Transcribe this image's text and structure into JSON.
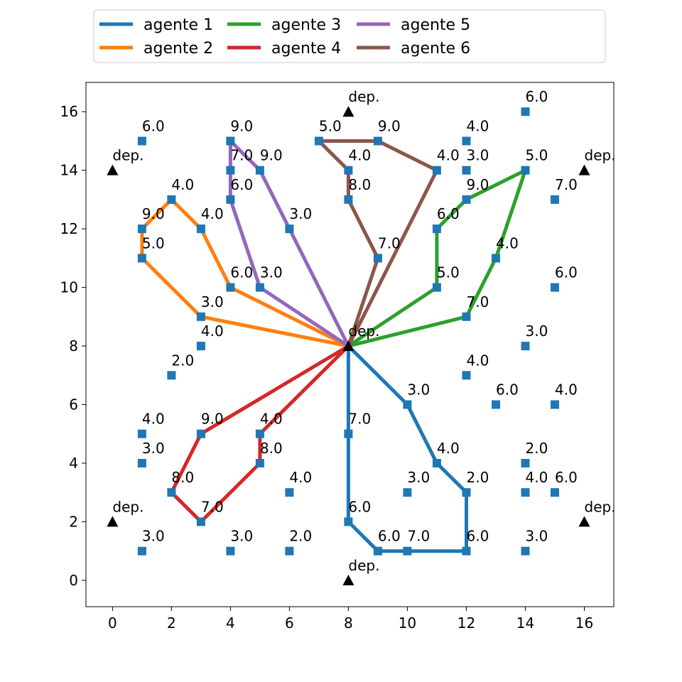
{
  "chart_data": {
    "type": "scatter",
    "xlim": [
      -0.9,
      17.0
    ],
    "ylim": [
      -0.9,
      17.0
    ],
    "xticks": [
      0,
      2,
      4,
      6,
      8,
      10,
      12,
      14,
      16
    ],
    "yticks": [
      0,
      2,
      4,
      6,
      8,
      10,
      12,
      14,
      16
    ],
    "grid": false,
    "legend": "top-center",
    "depot_label": "dep.",
    "depots": [
      {
        "x": 8,
        "y": 8
      },
      {
        "x": 8,
        "y": 16
      },
      {
        "x": 0,
        "y": 14
      },
      {
        "x": 16,
        "y": 14
      },
      {
        "x": 0,
        "y": 2
      },
      {
        "x": 16,
        "y": 2
      },
      {
        "x": 8,
        "y": 0
      }
    ],
    "customers": [
      {
        "x": 1,
        "y": 15,
        "label": "6.0"
      },
      {
        "x": 4,
        "y": 15,
        "label": "9.0"
      },
      {
        "x": 7,
        "y": 15,
        "label": "5.0"
      },
      {
        "x": 9,
        "y": 15,
        "label": "9.0"
      },
      {
        "x": 12,
        "y": 15,
        "label": "4.0"
      },
      {
        "x": 14,
        "y": 16,
        "label": "6.0"
      },
      {
        "x": 4,
        "y": 14,
        "label": "7.0"
      },
      {
        "x": 5,
        "y": 14,
        "label": "9.0"
      },
      {
        "x": 8,
        "y": 14,
        "label": "4.0"
      },
      {
        "x": 11,
        "y": 14,
        "label": "4.0"
      },
      {
        "x": 12,
        "y": 14,
        "label": "3.0"
      },
      {
        "x": 14,
        "y": 14,
        "label": "5.0"
      },
      {
        "x": 2,
        "y": 13,
        "label": "4.0"
      },
      {
        "x": 4,
        "y": 13,
        "label": "6.0"
      },
      {
        "x": 8,
        "y": 13,
        "label": "8.0"
      },
      {
        "x": 12,
        "y": 13,
        "label": "9.0"
      },
      {
        "x": 15,
        "y": 13,
        "label": "7.0"
      },
      {
        "x": 1,
        "y": 12,
        "label": "9.0"
      },
      {
        "x": 3,
        "y": 12,
        "label": "4.0"
      },
      {
        "x": 6,
        "y": 12,
        "label": "3.0"
      },
      {
        "x": 11,
        "y": 12,
        "label": "6.0"
      },
      {
        "x": 1,
        "y": 11,
        "label": "5.0"
      },
      {
        "x": 9,
        "y": 11,
        "label": "7.0"
      },
      {
        "x": 13,
        "y": 11,
        "label": "4.0"
      },
      {
        "x": 4,
        "y": 10,
        "label": "6.0"
      },
      {
        "x": 5,
        "y": 10,
        "label": "3.0"
      },
      {
        "x": 11,
        "y": 10,
        "label": "5.0"
      },
      {
        "x": 15,
        "y": 10,
        "label": "6.0"
      },
      {
        "x": 3,
        "y": 9,
        "label": "3.0"
      },
      {
        "x": 12,
        "y": 9,
        "label": "7.0"
      },
      {
        "x": 3,
        "y": 8,
        "label": "4.0"
      },
      {
        "x": 14,
        "y": 8,
        "label": "3.0"
      },
      {
        "x": 2,
        "y": 7,
        "label": "2.0"
      },
      {
        "x": 12,
        "y": 7,
        "label": "4.0"
      },
      {
        "x": 10,
        "y": 6,
        "label": "3.0"
      },
      {
        "x": 13,
        "y": 6,
        "label": "6.0"
      },
      {
        "x": 15,
        "y": 6,
        "label": "4.0"
      },
      {
        "x": 1,
        "y": 5,
        "label": "4.0"
      },
      {
        "x": 3,
        "y": 5,
        "label": "9.0"
      },
      {
        "x": 5,
        "y": 5,
        "label": "4.0"
      },
      {
        "x": 8,
        "y": 5,
        "label": "7.0"
      },
      {
        "x": 1,
        "y": 4,
        "label": "3.0"
      },
      {
        "x": 5,
        "y": 4,
        "label": "8.0"
      },
      {
        "x": 11,
        "y": 4,
        "label": "4.0"
      },
      {
        "x": 14,
        "y": 4,
        "label": "2.0"
      },
      {
        "x": 2,
        "y": 3,
        "label": "8.0"
      },
      {
        "x": 6,
        "y": 3,
        "label": "4.0"
      },
      {
        "x": 10,
        "y": 3,
        "label": "3.0"
      },
      {
        "x": 12,
        "y": 3,
        "label": "2.0"
      },
      {
        "x": 14,
        "y": 3,
        "label": "4.0"
      },
      {
        "x": 15,
        "y": 3,
        "label": "6.0"
      },
      {
        "x": 3,
        "y": 2,
        "label": "7.0"
      },
      {
        "x": 8,
        "y": 2,
        "label": "6.0"
      },
      {
        "x": 1,
        "y": 1,
        "label": "3.0"
      },
      {
        "x": 4,
        "y": 1,
        "label": "3.0"
      },
      {
        "x": 6,
        "y": 1,
        "label": "2.0"
      },
      {
        "x": 9,
        "y": 1,
        "label": "6.0"
      },
      {
        "x": 10,
        "y": 1,
        "label": "7.0"
      },
      {
        "x": 12,
        "y": 1,
        "label": "6.0"
      },
      {
        "x": 14,
        "y": 1,
        "label": "3.0"
      }
    ],
    "series": [
      {
        "name": "agente 1",
        "color": "#1f77b4",
        "x": [
          8,
          8,
          8,
          9,
          10,
          12,
          12,
          11,
          10,
          8
        ],
        "y": [
          8,
          5,
          2,
          1,
          1,
          1,
          3,
          4,
          6,
          8
        ]
      },
      {
        "name": "agente 2",
        "color": "#ff7f0e",
        "x": [
          8,
          3,
          1,
          1,
          2,
          3,
          4,
          8
        ],
        "y": [
          8,
          9,
          11,
          12,
          13,
          12,
          10,
          8
        ]
      },
      {
        "name": "agente 3",
        "color": "#2ca02c",
        "x": [
          8,
          12,
          13,
          14,
          12,
          11,
          11,
          8
        ],
        "y": [
          8,
          9,
          11,
          14,
          13,
          12,
          10,
          8
        ]
      },
      {
        "name": "agente 4",
        "color": "#d62728",
        "x": [
          8,
          3,
          2,
          3,
          5,
          5,
          8
        ],
        "y": [
          8,
          5,
          3,
          2,
          4,
          5,
          8
        ]
      },
      {
        "name": "agente 5",
        "color": "#9467bd",
        "x": [
          8,
          5,
          4,
          4,
          4,
          5,
          6,
          8
        ],
        "y": [
          8,
          10,
          13,
          14,
          15,
          14,
          12,
          8
        ]
      },
      {
        "name": "agente 6",
        "color": "#8c564b",
        "x": [
          8,
          9,
          8,
          8,
          7,
          9,
          11,
          8
        ],
        "y": [
          8,
          11,
          13,
          14,
          15,
          15,
          14,
          8
        ]
      }
    ],
    "marker_color": "#1f77b4",
    "depot_color": "#000000"
  }
}
